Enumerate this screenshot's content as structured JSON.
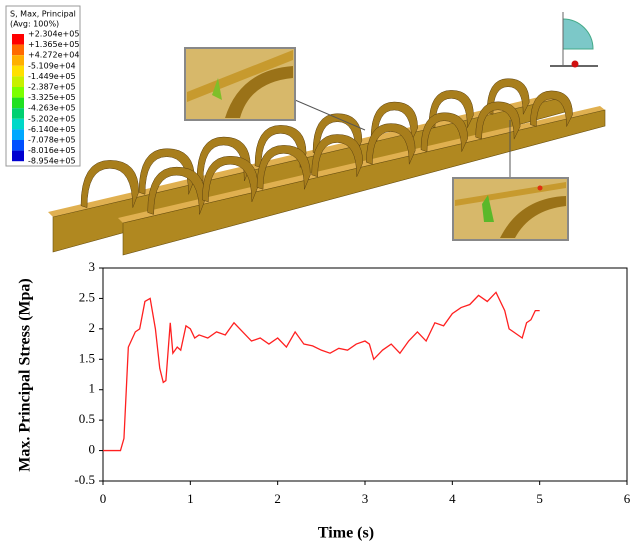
{
  "contour_legend": {
    "title": "S, Max, Principal",
    "subtitle": "(Avg: 100%)",
    "labels": [
      "+2.304e+05",
      "+1.365e+05",
      "+4.272e+04",
      "-5.109e+04",
      "-1.449e+05",
      "-2.387e+05",
      "-3.325e+05",
      "-4.263e+05",
      "-5.202e+05",
      "-6.140e+05",
      "-7.078e+05",
      "-8.016e+05",
      "-8.954e+05"
    ],
    "colors": [
      "#ff0000",
      "#ff6a00",
      "#ffb000",
      "#ffe000",
      "#c8f000",
      "#7cff00",
      "#20e020",
      "#00d070",
      "#00d8c8",
      "#00a8ff",
      "#0050ff",
      "#0000d0"
    ]
  },
  "chart_data": {
    "type": "line",
    "xlabel": "Time (s)",
    "ylabel": "Max. Principal Stress (Mpa)",
    "x": [
      0,
      0.2,
      0.24,
      0.29,
      0.37,
      0.42,
      0.48,
      0.54,
      0.6,
      0.65,
      0.69,
      0.72,
      0.77,
      0.8,
      0.85,
      0.89,
      0.95,
      1.0,
      1.05,
      1.1,
      1.2,
      1.3,
      1.4,
      1.5,
      1.6,
      1.7,
      1.8,
      1.9,
      2.0,
      2.1,
      2.2,
      2.3,
      2.4,
      2.5,
      2.6,
      2.7,
      2.8,
      2.9,
      3.0,
      3.05,
      3.1,
      3.2,
      3.3,
      3.4,
      3.5,
      3.6,
      3.7,
      3.8,
      3.9,
      4.0,
      4.1,
      4.2,
      4.3,
      4.4,
      4.5,
      4.6,
      4.65,
      4.7,
      4.8,
      4.85,
      4.9,
      4.95,
      5.0
    ],
    "values": [
      0,
      0,
      0.2,
      1.7,
      1.95,
      2.0,
      2.45,
      2.5,
      2.0,
      1.35,
      1.12,
      1.15,
      2.1,
      1.6,
      1.7,
      1.65,
      2.05,
      2.0,
      1.85,
      1.9,
      1.85,
      1.95,
      1.9,
      2.1,
      1.95,
      1.8,
      1.85,
      1.75,
      1.85,
      1.7,
      1.95,
      1.75,
      1.72,
      1.65,
      1.6,
      1.68,
      1.65,
      1.75,
      1.8,
      1.75,
      1.5,
      1.65,
      1.75,
      1.6,
      1.8,
      1.95,
      1.8,
      2.1,
      2.05,
      2.25,
      2.35,
      2.4,
      2.55,
      2.45,
      2.6,
      2.3,
      2.0,
      1.95,
      1.85,
      2.1,
      2.15,
      2.3,
      2.3
    ],
    "color": "#ff2020",
    "xlim": [
      0,
      6
    ],
    "xticks": [
      0,
      1,
      2,
      3,
      4,
      5,
      6
    ],
    "ylim": [
      -0.5,
      3
    ],
    "yticks": [
      -0.5,
      0,
      0.5,
      1,
      1.5,
      2,
      2.5,
      3
    ],
    "grid": false
  }
}
